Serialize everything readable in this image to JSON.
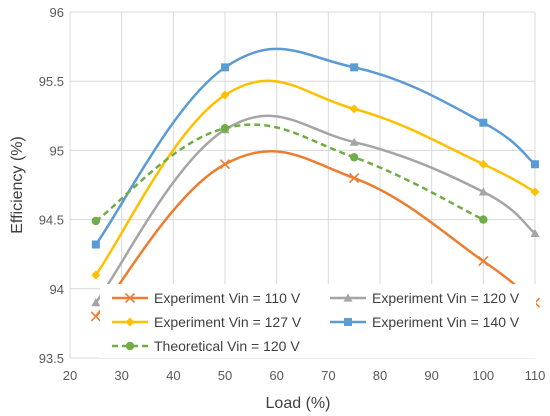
{
  "chart_data": {
    "type": "line",
    "title": "",
    "xlabel": "Load (%)",
    "ylabel": "Efficiency (%)",
    "xlim": [
      20,
      110
    ],
    "ylim": [
      93.5,
      96
    ],
    "x_ticks": [
      "20",
      "30",
      "40",
      "50",
      "60",
      "70",
      "80",
      "90",
      "100",
      "110"
    ],
    "y_ticks": [
      "93.5",
      "94",
      "94.5",
      "95",
      "95.5",
      "96"
    ],
    "grid": true,
    "legend_position": "bottom-inside",
    "series": [
      {
        "name": "Experiment Vin = 110 V",
        "color": "#ED7D31",
        "marker": "x",
        "dashed": false,
        "x": [
          25,
          50,
          75,
          100,
          110
        ],
        "y": [
          93.8,
          94.9,
          94.8,
          94.2,
          93.9
        ]
      },
      {
        "name": "Experiment Vin = 120 V",
        "color": "#A5A5A5",
        "marker": "triangle",
        "dashed": false,
        "x": [
          25,
          50,
          75,
          100,
          110
        ],
        "y": [
          93.9,
          95.15,
          95.06,
          94.7,
          94.4
        ]
      },
      {
        "name": "Experiment Vin = 127 V",
        "color": "#FFC000",
        "marker": "diamond",
        "dashed": false,
        "x": [
          25,
          50,
          75,
          100,
          110
        ],
        "y": [
          94.1,
          95.4,
          95.3,
          94.9,
          94.7
        ]
      },
      {
        "name": "Experiment Vin = 140 V",
        "color": "#5B9BD5",
        "marker": "square",
        "dashed": false,
        "x": [
          25,
          50,
          75,
          100,
          110
        ],
        "y": [
          94.32,
          95.6,
          95.6,
          95.2,
          94.9
        ]
      },
      {
        "name": "Theoretical Vin = 120 V",
        "color": "#70AD47",
        "marker": "circle",
        "dashed": true,
        "x": [
          25,
          50,
          75,
          100
        ],
        "y": [
          94.49,
          95.16,
          94.95,
          94.5
        ]
      }
    ]
  }
}
